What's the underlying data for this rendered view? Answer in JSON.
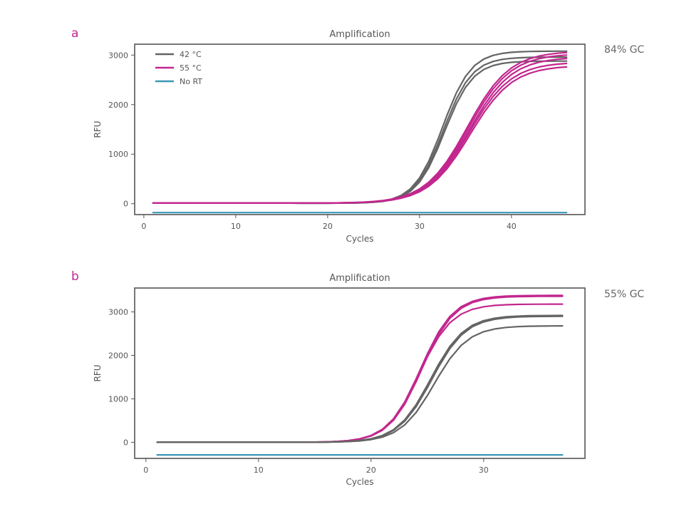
{
  "colors": {
    "c42": "#646464",
    "c55": "#c2278f",
    "noRT": "#3b97b6",
    "letter": "#c2278f"
  },
  "chart_data": [
    {
      "panel": "a",
      "type": "line",
      "title": "Amplification",
      "side_label": "84% GC",
      "xlabel": "Cycles",
      "ylabel": "RFU",
      "xlim": [
        -1,
        48
      ],
      "ylim": [
        -220,
        3220
      ],
      "xticks": [
        0,
        10,
        20,
        30,
        40
      ],
      "yticks": [
        0,
        1000,
        2000,
        3000
      ],
      "legend": {
        "placement": "top-left",
        "entries": [
          {
            "label": "42 °C",
            "color": "#646464"
          },
          {
            "label": "55 °C",
            "color": "#c2278f"
          },
          {
            "label": "No RT",
            "color": "#3b97b6"
          }
        ]
      },
      "series": [
        {
          "group": "42 °C",
          "plateau": 3080,
          "midpoint": 32.5,
          "slope": 1.55
        },
        {
          "group": "42 °C",
          "plateau": 2960,
          "midpoint": 32.6,
          "slope": 1.55
        },
        {
          "group": "42 °C",
          "plateau": 2880,
          "midpoint": 32.7,
          "slope": 1.55
        },
        {
          "group": "55 °C",
          "plateau": 3080,
          "midpoint": 35.2,
          "slope": 2.3
        },
        {
          "group": "55 °C",
          "plateau": 3030,
          "midpoint": 35.3,
          "slope": 2.3
        },
        {
          "group": "55 °C",
          "plateau": 2960,
          "midpoint": 35.4,
          "slope": 2.3
        },
        {
          "group": "55 °C",
          "plateau": 2860,
          "midpoint": 35.4,
          "slope": 2.3
        },
        {
          "group": "55 °C",
          "plateau": 2790,
          "midpoint": 35.5,
          "slope": 2.3
        },
        {
          "group": "No RT",
          "constant": -180
        }
      ],
      "x_range": [
        1,
        46
      ],
      "baseline": 15
    },
    {
      "panel": "b",
      "type": "line",
      "title": "Amplification",
      "side_label": "55% GC",
      "xlabel": "Cycles",
      "ylabel": "RFU",
      "xlim": [
        -1,
        39
      ],
      "ylim": [
        -370,
        3550
      ],
      "xticks": [
        0,
        10,
        20,
        30
      ],
      "yticks": [
        0,
        1000,
        2000,
        3000
      ],
      "series": [
        {
          "group": "55 °C",
          "plateau": 3380,
          "midpoint": 24.4,
          "slope": 1.45
        },
        {
          "group": "55 °C",
          "plateau": 3360,
          "midpoint": 24.5,
          "slope": 1.45
        },
        {
          "group": "55 °C",
          "plateau": 3180,
          "midpoint": 24.3,
          "slope": 1.45
        },
        {
          "group": "42 °C",
          "plateau": 2920,
          "midpoint": 25.3,
          "slope": 1.5
        },
        {
          "group": "42 °C",
          "plateau": 2900,
          "midpoint": 25.4,
          "slope": 1.5
        },
        {
          "group": "42 °C",
          "plateau": 2680,
          "midpoint": 25.6,
          "slope": 1.5
        },
        {
          "group": "No RT",
          "constant": -290
        }
      ],
      "x_range": [
        1,
        37
      ],
      "baseline": 0
    }
  ]
}
